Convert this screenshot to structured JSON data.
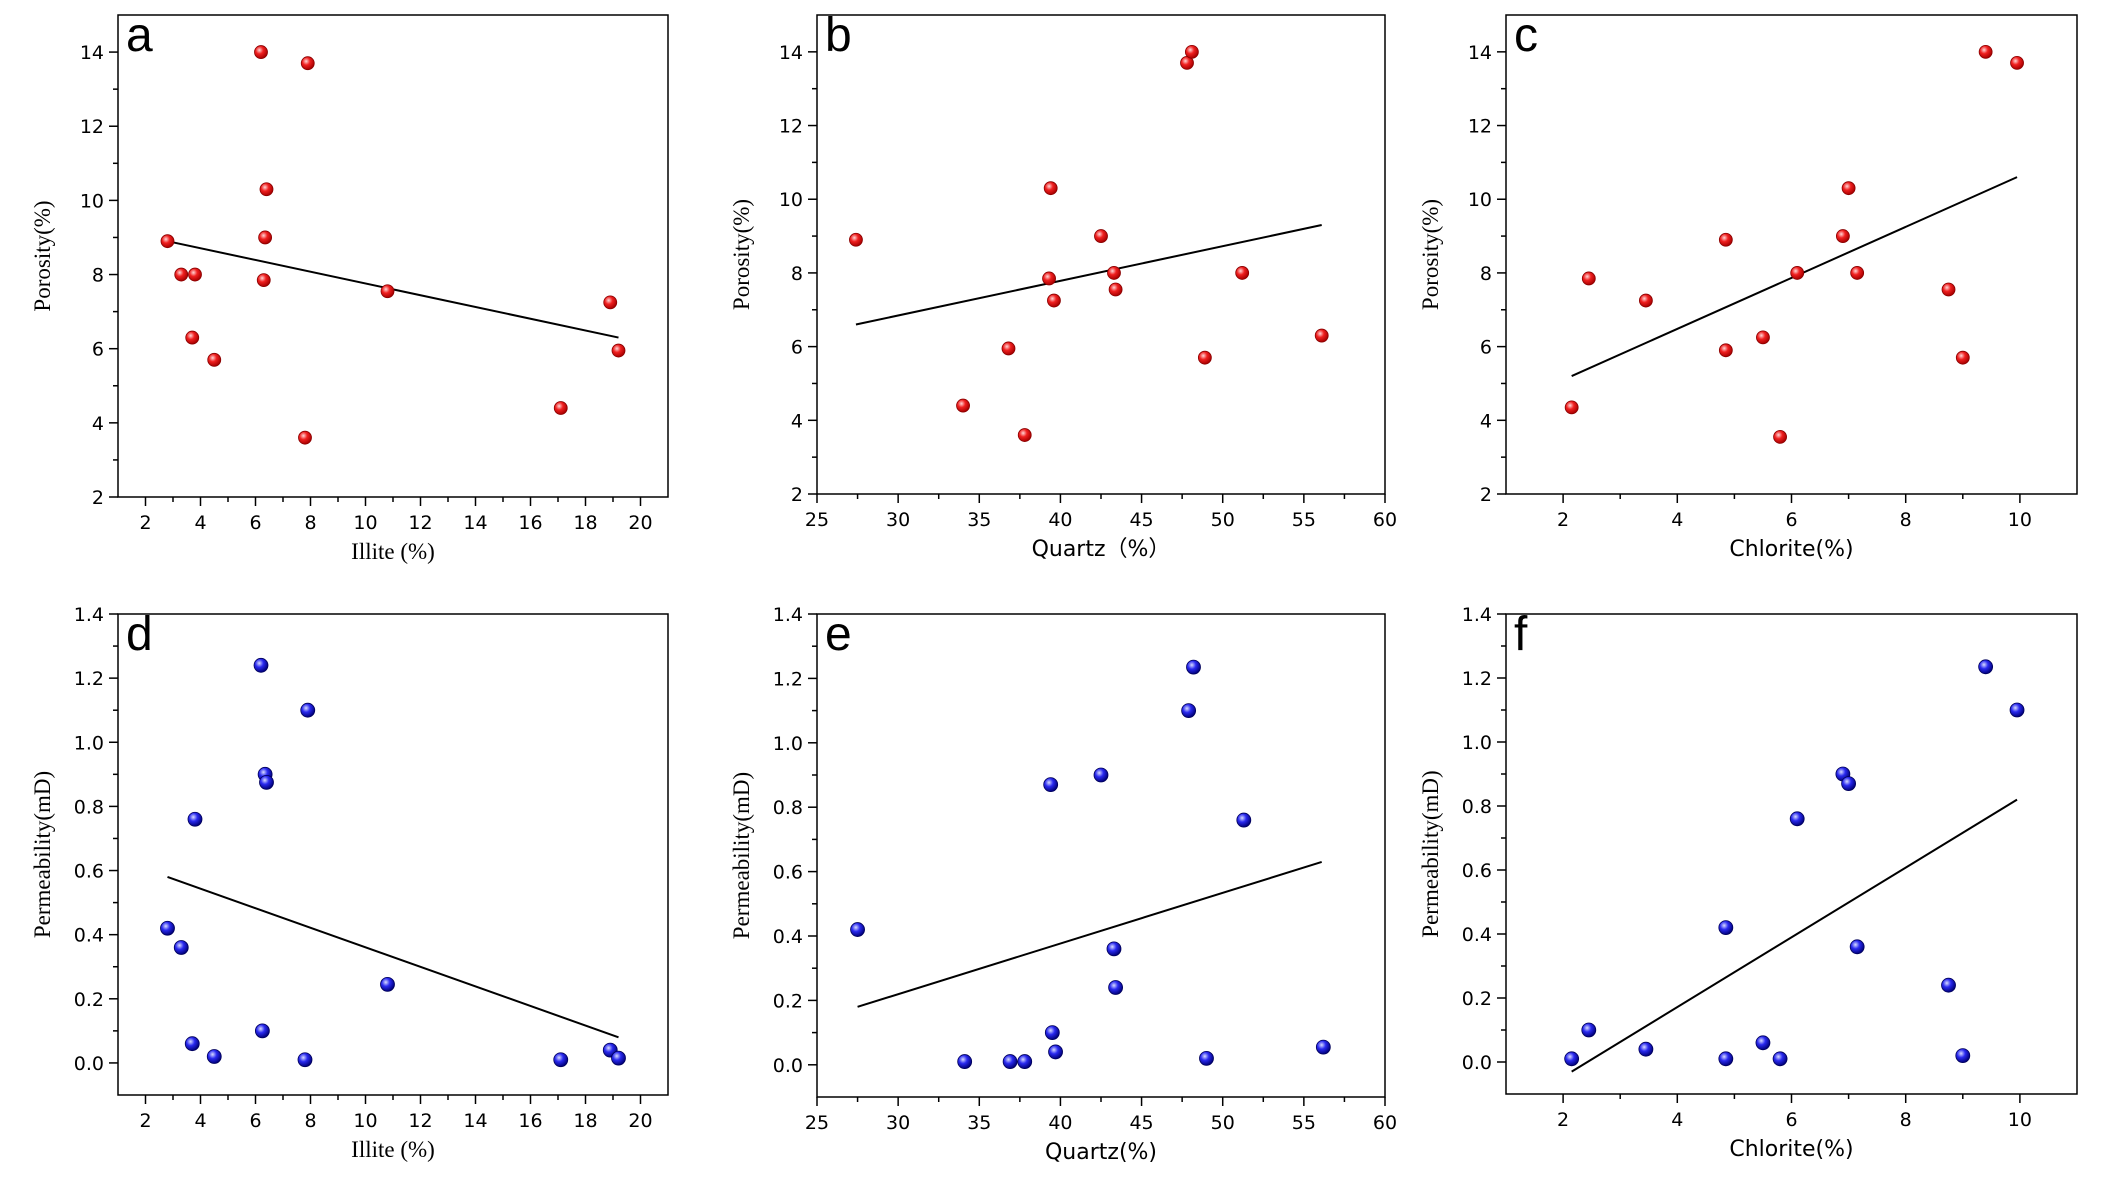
{
  "figure": {
    "width": 2110,
    "height": 1178
  },
  "colors": {
    "porosity_marker": "#e8141c",
    "permeability_marker": "#1a1ae6",
    "fit_line": "#000000"
  },
  "chart_data": [
    {
      "id": "a",
      "panel_label": "a",
      "type": "scatter",
      "xlabel": "Illite (%)",
      "ylabel": "Porosity(%)",
      "xlim": [
        1,
        21
      ],
      "ylim": [
        2,
        15
      ],
      "xticks": [
        2,
        4,
        6,
        8,
        10,
        12,
        14,
        16,
        18,
        20
      ],
      "yticks": [
        2,
        4,
        6,
        8,
        10,
        12,
        14
      ],
      "tick_decimals": 0,
      "label_style": "serif",
      "marker": "porosity",
      "points": [
        [
          2.8,
          8.9
        ],
        [
          3.3,
          8.0
        ],
        [
          3.7,
          6.3
        ],
        [
          3.8,
          8.0
        ],
        [
          4.5,
          5.7
        ],
        [
          6.2,
          14.0
        ],
        [
          6.3,
          7.85
        ],
        [
          6.35,
          9.0
        ],
        [
          6.4,
          10.3
        ],
        [
          7.8,
          3.6
        ],
        [
          7.9,
          13.7
        ],
        [
          10.8,
          7.55
        ],
        [
          17.1,
          4.4
        ],
        [
          18.9,
          7.25
        ],
        [
          19.2,
          5.95
        ]
      ],
      "fit": [
        [
          2.8,
          8.9
        ],
        [
          19.2,
          6.3
        ]
      ]
    },
    {
      "id": "b",
      "panel_label": "b",
      "type": "scatter",
      "xlabel": "Quartz（%）",
      "ylabel": "Porosity(%)",
      "xlim": [
        25,
        60
      ],
      "ylim": [
        2,
        15
      ],
      "xticks": [
        25,
        30,
        35,
        40,
        45,
        50,
        55,
        60
      ],
      "yticks": [
        2,
        4,
        6,
        8,
        10,
        12,
        14
      ],
      "tick_decimals": 0,
      "label_style": "sans",
      "marker": "porosity",
      "points": [
        [
          27.4,
          8.9
        ],
        [
          34,
          4.4
        ],
        [
          36.8,
          5.95
        ],
        [
          37.8,
          3.6
        ],
        [
          39.3,
          7.85
        ],
        [
          39.4,
          10.3
        ],
        [
          39.6,
          7.25
        ],
        [
          42.5,
          9.0
        ],
        [
          43.3,
          8.0
        ],
        [
          43.4,
          7.55
        ],
        [
          47.8,
          13.7
        ],
        [
          48.1,
          14.0
        ],
        [
          48.9,
          5.7
        ],
        [
          51.2,
          8.0
        ],
        [
          56.1,
          6.3
        ]
      ],
      "fit": [
        [
          27.4,
          6.6
        ],
        [
          56.1,
          9.3
        ]
      ]
    },
    {
      "id": "c",
      "panel_label": "c",
      "type": "scatter",
      "xlabel": "Chlorite(%)",
      "ylabel": "Porosity(%)",
      "xlim": [
        1,
        11
      ],
      "ylim": [
        2,
        15
      ],
      "xticks": [
        2,
        4,
        6,
        8,
        10
      ],
      "yticks": [
        2,
        4,
        6,
        8,
        10,
        12,
        14
      ],
      "tick_decimals": 0,
      "label_style": "sans",
      "marker": "porosity",
      "points": [
        [
          2.15,
          4.35
        ],
        [
          2.45,
          7.85
        ],
        [
          3.45,
          7.25
        ],
        [
          4.85,
          8.9
        ],
        [
          4.85,
          5.9
        ],
        [
          5.5,
          6.25
        ],
        [
          5.8,
          3.55
        ],
        [
          6.1,
          8.0
        ],
        [
          6.9,
          9.0
        ],
        [
          7.0,
          10.3
        ],
        [
          7.15,
          8.0
        ],
        [
          8.75,
          7.55
        ],
        [
          9.0,
          5.7
        ],
        [
          9.4,
          14.0
        ],
        [
          9.95,
          13.7
        ]
      ],
      "fit": [
        [
          2.15,
          5.2
        ],
        [
          9.95,
          10.6
        ]
      ]
    },
    {
      "id": "d",
      "panel_label": "d",
      "type": "scatter",
      "xlabel": "Illite (%)",
      "ylabel": "Permeability(mD)",
      "xlim": [
        1,
        21
      ],
      "ylim": [
        -0.1,
        1.4
      ],
      "xticks": [
        2,
        4,
        6,
        8,
        10,
        12,
        14,
        16,
        18,
        20
      ],
      "yticks": [
        0,
        0.2,
        0.4,
        0.6,
        0.8,
        1.0,
        1.2,
        1.4
      ],
      "tick_decimals": 1,
      "label_style": "serif",
      "marker": "permeability",
      "points": [
        [
          2.8,
          0.42
        ],
        [
          3.3,
          0.36
        ],
        [
          3.7,
          0.06
        ],
        [
          3.8,
          0.76
        ],
        [
          4.5,
          0.02
        ],
        [
          6.2,
          1.24
        ],
        [
          6.25,
          0.1
        ],
        [
          6.35,
          0.9
        ],
        [
          6.4,
          0.875
        ],
        [
          7.8,
          0.01
        ],
        [
          7.9,
          1.1
        ],
        [
          10.8,
          0.245
        ],
        [
          17.1,
          0.01
        ],
        [
          18.9,
          0.04
        ],
        [
          19.2,
          0.015
        ]
      ],
      "fit": [
        [
          2.8,
          0.58
        ],
        [
          19.2,
          0.08
        ]
      ]
    },
    {
      "id": "e",
      "panel_label": "e",
      "type": "scatter",
      "xlabel": "Quartz(%)",
      "ylabel": "Permeability(mD)",
      "xlim": [
        25,
        60
      ],
      "ylim": [
        -0.1,
        1.4
      ],
      "xticks": [
        25,
        30,
        35,
        40,
        45,
        50,
        55,
        60
      ],
      "yticks": [
        0,
        0.2,
        0.4,
        0.6,
        0.8,
        1.0,
        1.2,
        1.4
      ],
      "tick_decimals": 1,
      "label_style": "sans",
      "marker": "permeability",
      "points": [
        [
          27.5,
          0.42
        ],
        [
          34.1,
          0.01
        ],
        [
          36.9,
          0.01
        ],
        [
          37.8,
          0.01
        ],
        [
          39.4,
          0.87
        ],
        [
          39.5,
          0.1
        ],
        [
          39.7,
          0.04
        ],
        [
          42.5,
          0.9
        ],
        [
          43.3,
          0.36
        ],
        [
          43.4,
          0.24
        ],
        [
          47.9,
          1.1
        ],
        [
          48.2,
          1.235
        ],
        [
          49.0,
          0.02
        ],
        [
          51.3,
          0.76
        ],
        [
          56.2,
          0.055
        ]
      ],
      "fit": [
        [
          27.5,
          0.18
        ],
        [
          56.1,
          0.63
        ]
      ]
    },
    {
      "id": "f",
      "panel_label": "f",
      "type": "scatter",
      "xlabel": "Chlorite(%)",
      "ylabel": "Permeability(mD)",
      "xlim": [
        1,
        11
      ],
      "ylim": [
        -0.1,
        1.4
      ],
      "xticks": [
        2,
        4,
        6,
        8,
        10
      ],
      "yticks": [
        0,
        0.2,
        0.4,
        0.6,
        0.8,
        1.0,
        1.2,
        1.4
      ],
      "tick_decimals": 1,
      "label_style": "sans",
      "marker": "permeability",
      "points": [
        [
          2.15,
          0.01
        ],
        [
          2.45,
          0.1
        ],
        [
          3.45,
          0.04
        ],
        [
          4.85,
          0.42
        ],
        [
          4.85,
          0.01
        ],
        [
          5.5,
          0.06
        ],
        [
          5.8,
          0.01
        ],
        [
          6.1,
          0.76
        ],
        [
          6.9,
          0.9
        ],
        [
          7.0,
          0.87
        ],
        [
          7.15,
          0.36
        ],
        [
          8.75,
          0.24
        ],
        [
          9.0,
          0.02
        ],
        [
          9.4,
          1.235
        ],
        [
          9.95,
          1.1
        ]
      ],
      "fit": [
        [
          2.15,
          -0.03
        ],
        [
          9.95,
          0.82
        ]
      ]
    }
  ]
}
